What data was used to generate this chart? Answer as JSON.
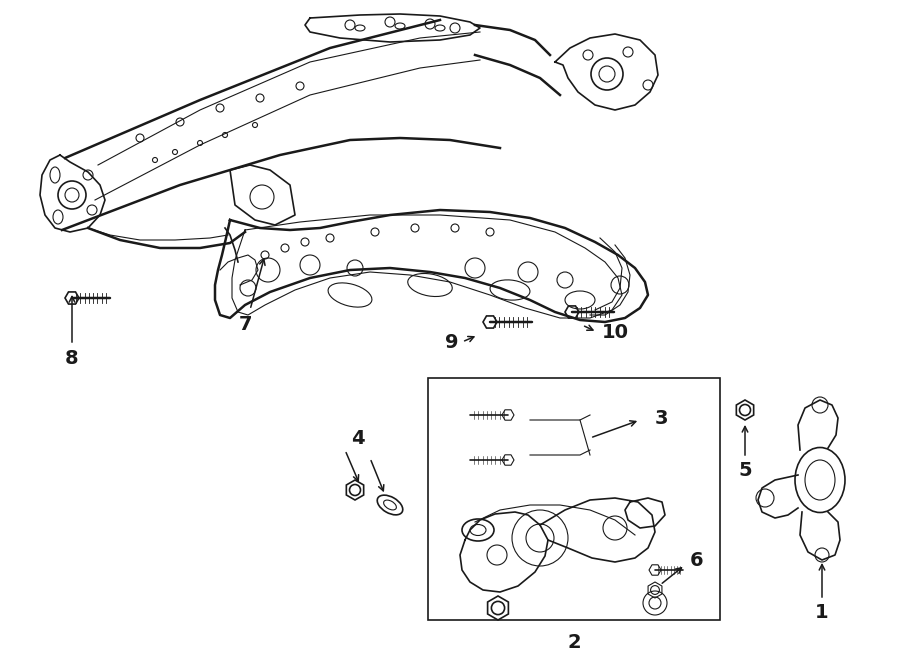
{
  "bg_color": "#ffffff",
  "line_color": "#1a1a1a",
  "fig_width": 9.0,
  "fig_height": 6.61,
  "dpi": 100,
  "title_color": "#000000"
}
